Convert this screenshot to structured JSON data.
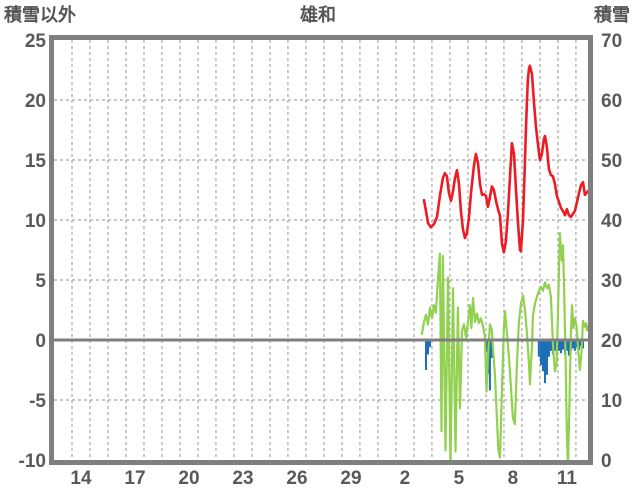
{
  "header": {
    "left_axis_label": "積雪以外",
    "title": "雄和",
    "right_axis_label": "積雪"
  },
  "colors": {
    "frame": "#7f7f7f",
    "grid": "#a6a6a6",
    "zero_line": "#7f7f7f",
    "text": "#595959",
    "red_line": "#ed1c24",
    "green_line": "#92d050",
    "blue_bar": "#1d6fb7"
  },
  "chart_data": {
    "type": "line",
    "title": "雄和",
    "legend": "none",
    "grid": "on",
    "left_axis": {
      "label": "積雪以外",
      "min": -10,
      "max": 25,
      "ticks": [
        25,
        20,
        15,
        10,
        5,
        0,
        -5,
        -10
      ],
      "dashed_gridline_values": [
        20,
        15,
        10,
        5,
        -5
      ],
      "zero_line_value": 0
    },
    "right_axis": {
      "label": "積雪",
      "min": 0,
      "max": 70,
      "ticks": [
        70,
        60,
        50,
        40,
        30,
        20,
        10,
        0
      ]
    },
    "x_axis": {
      "total_days": 29.67,
      "gridline_every_days": 1,
      "tick_labels": [
        "14",
        "17",
        "20",
        "23",
        "26",
        "29",
        "2",
        "5",
        "8",
        "11"
      ],
      "tick_positions_days": [
        1.5,
        4.5,
        7.5,
        10.5,
        13.5,
        16.5,
        19.5,
        22.5,
        25.5,
        28.5
      ]
    },
    "series": [
      {
        "name": "red_line",
        "axis_label": "積雪",
        "type": "line",
        "axis": "right",
        "color": "#ed1c24",
        "width": 2.6,
        "points": [
          [
            20.56,
            43.3
          ],
          [
            20.67,
            41.5
          ],
          [
            20.78,
            39.5
          ],
          [
            20.94,
            38.8
          ],
          [
            21.11,
            39.3
          ],
          [
            21.28,
            40.5
          ],
          [
            21.44,
            44.0
          ],
          [
            21.61,
            47.0
          ],
          [
            21.72,
            47.8
          ],
          [
            21.83,
            47.3
          ],
          [
            21.94,
            44.5
          ],
          [
            22.06,
            43.2
          ],
          [
            22.17,
            44.8
          ],
          [
            22.28,
            47.0
          ],
          [
            22.39,
            48.3
          ],
          [
            22.5,
            46.0
          ],
          [
            22.61,
            41.5
          ],
          [
            22.72,
            38.5
          ],
          [
            22.83,
            37.0
          ],
          [
            22.94,
            37.8
          ],
          [
            23.06,
            40.5
          ],
          [
            23.17,
            44.5
          ],
          [
            23.33,
            49.0
          ],
          [
            23.44,
            51.0
          ],
          [
            23.56,
            49.5
          ],
          [
            23.67,
            46.0
          ],
          [
            23.78,
            44.2
          ],
          [
            23.89,
            44.3
          ],
          [
            24.0,
            44.0
          ],
          [
            24.11,
            42.2
          ],
          [
            24.22,
            43.8
          ],
          [
            24.33,
            45.6
          ],
          [
            24.44,
            45.0
          ],
          [
            24.56,
            43.2
          ],
          [
            24.67,
            41.8
          ],
          [
            24.78,
            40.7
          ],
          [
            24.89,
            36.0
          ],
          [
            25.0,
            34.6
          ],
          [
            25.11,
            36.5
          ],
          [
            25.22,
            41.0
          ],
          [
            25.33,
            47.0
          ],
          [
            25.44,
            52.8
          ],
          [
            25.56,
            51.0
          ],
          [
            25.67,
            45.0
          ],
          [
            25.78,
            39.5
          ],
          [
            25.89,
            35.0
          ],
          [
            25.94,
            34.8
          ],
          [
            26.06,
            40.0
          ],
          [
            26.17,
            50.0
          ],
          [
            26.22,
            55.0
          ],
          [
            26.28,
            60.0
          ],
          [
            26.33,
            63.5
          ],
          [
            26.39,
            65.2
          ],
          [
            26.44,
            65.7
          ],
          [
            26.5,
            65.0
          ],
          [
            26.56,
            64.3
          ],
          [
            26.67,
            59.5
          ],
          [
            26.78,
            55.5
          ],
          [
            26.89,
            52.5
          ],
          [
            27.0,
            50.0
          ],
          [
            27.11,
            51.0
          ],
          [
            27.22,
            53.5
          ],
          [
            27.28,
            54.0
          ],
          [
            27.39,
            52.0
          ],
          [
            27.5,
            48.5
          ],
          [
            27.61,
            47.5
          ],
          [
            27.72,
            47.3
          ],
          [
            27.83,
            46.0
          ],
          [
            27.94,
            44.0
          ],
          [
            28.06,
            43.0
          ],
          [
            28.17,
            42.0
          ],
          [
            28.28,
            41.5
          ],
          [
            28.39,
            40.8
          ],
          [
            28.5,
            41.8
          ],
          [
            28.61,
            40.8
          ],
          [
            28.72,
            40.5
          ],
          [
            28.83,
            41.0
          ],
          [
            28.94,
            41.5
          ],
          [
            29.06,
            43.0
          ],
          [
            29.17,
            44.5
          ],
          [
            29.28,
            45.8
          ],
          [
            29.39,
            46.3
          ],
          [
            29.5,
            44.2
          ],
          [
            29.61,
            44.6
          ],
          [
            29.67,
            44.8
          ]
        ]
      },
      {
        "name": "green_line",
        "axis_label": "積雪以外",
        "type": "line",
        "axis": "left",
        "color": "#92d050",
        "width": 2.2,
        "points": [
          [
            20.44,
            0.5
          ],
          [
            20.56,
            1.5
          ],
          [
            20.67,
            2.1
          ],
          [
            20.78,
            1.3
          ],
          [
            20.89,
            2.7
          ],
          [
            21.0,
            1.8
          ],
          [
            21.11,
            2.9
          ],
          [
            21.22,
            2.3
          ],
          [
            21.33,
            5.0
          ],
          [
            21.44,
            7.2
          ],
          [
            21.53,
            -7.6
          ],
          [
            21.61,
            7.0
          ],
          [
            21.75,
            -9.2
          ],
          [
            21.89,
            5.2
          ],
          [
            22.03,
            -10.5
          ],
          [
            22.17,
            4.3
          ],
          [
            22.31,
            -9.3
          ],
          [
            22.44,
            2.7
          ],
          [
            22.56,
            -5.7
          ],
          [
            22.67,
            0.8
          ],
          [
            22.78,
            1.3
          ],
          [
            22.89,
            0.2
          ],
          [
            23.0,
            1.5
          ],
          [
            23.11,
            2.9
          ],
          [
            23.19,
            1.0
          ],
          [
            23.28,
            3.5
          ],
          [
            23.39,
            1.5
          ],
          [
            23.5,
            2.2
          ],
          [
            23.61,
            1.4
          ],
          [
            23.72,
            1.8
          ],
          [
            23.83,
            1.2
          ],
          [
            23.94,
            0.3
          ],
          [
            24.03,
            -4.3
          ],
          [
            24.11,
            -1.5
          ],
          [
            24.22,
            1.3
          ],
          [
            24.33,
            0.8
          ],
          [
            24.39,
            -0.7
          ],
          [
            24.5,
            -3.0
          ],
          [
            24.61,
            -6.5
          ],
          [
            24.69,
            -9.2
          ],
          [
            24.78,
            -9.8
          ],
          [
            24.89,
            -4.0
          ],
          [
            25.0,
            1.0
          ],
          [
            25.06,
            2.4
          ],
          [
            25.17,
            0.5
          ],
          [
            25.28,
            -1.5
          ],
          [
            25.39,
            -4.0
          ],
          [
            25.5,
            -6.5
          ],
          [
            25.61,
            -7.0
          ],
          [
            25.72,
            -2.0
          ],
          [
            25.83,
            1.5
          ],
          [
            25.94,
            3.0
          ],
          [
            26.06,
            3.7
          ],
          [
            26.17,
            2.5
          ],
          [
            26.28,
            0.5
          ],
          [
            26.39,
            -2.0
          ],
          [
            26.44,
            -3.7
          ],
          [
            26.56,
            -0.5
          ],
          [
            26.61,
            2.0
          ],
          [
            26.72,
            3.0
          ],
          [
            26.83,
            3.6
          ],
          [
            26.94,
            4.1
          ],
          [
            27.06,
            4.4
          ],
          [
            27.17,
            4.1
          ],
          [
            27.28,
            4.8
          ],
          [
            27.39,
            4.3
          ],
          [
            27.5,
            4.6
          ],
          [
            27.61,
            3.6
          ],
          [
            27.67,
            1.5
          ],
          [
            27.75,
            -1.0
          ],
          [
            27.83,
            -2.6
          ],
          [
            27.92,
            -2.0
          ],
          [
            28.0,
            2.0
          ],
          [
            28.06,
            6.0
          ],
          [
            28.11,
            8.9
          ],
          [
            28.17,
            7.4
          ],
          [
            28.22,
            6.6
          ],
          [
            28.28,
            7.9
          ],
          [
            28.33,
            5.0
          ],
          [
            28.42,
            -1.0
          ],
          [
            28.5,
            -8.0
          ],
          [
            28.56,
            -10.6
          ],
          [
            28.64,
            -5.0
          ],
          [
            28.72,
            0.5
          ],
          [
            28.78,
            2.9
          ],
          [
            28.86,
            1.0
          ],
          [
            28.94,
            1.8
          ],
          [
            29.03,
            1.2
          ],
          [
            29.11,
            -0.5
          ],
          [
            29.22,
            -2.5
          ],
          [
            29.31,
            -1.0
          ],
          [
            29.39,
            1.6
          ],
          [
            29.47,
            1.1
          ],
          [
            29.56,
            1.4
          ],
          [
            29.61,
            0.8
          ],
          [
            29.67,
            1.2
          ]
        ]
      },
      {
        "name": "blue_bars",
        "axis_label": "積雪以外",
        "type": "bar",
        "axis": "left",
        "color": "#1d6fb7",
        "bar_width_days": 0.115,
        "points": [
          [
            20.67,
            -2.5
          ],
          [
            20.78,
            -1.2
          ],
          [
            20.89,
            -0.6
          ],
          [
            24.0,
            -1.0
          ],
          [
            24.11,
            -2.8
          ],
          [
            24.22,
            -4.2
          ],
          [
            24.31,
            -1.5
          ],
          [
            26.94,
            -1.4
          ],
          [
            27.06,
            -2.1
          ],
          [
            27.17,
            -2.6
          ],
          [
            27.28,
            -3.6
          ],
          [
            27.39,
            -2.9
          ],
          [
            27.5,
            -1.4
          ],
          [
            27.61,
            -0.9
          ],
          [
            27.72,
            -1.2
          ],
          [
            27.83,
            -0.9
          ],
          [
            27.94,
            -1.3
          ],
          [
            28.06,
            -0.9
          ],
          [
            28.17,
            -1.1
          ],
          [
            28.28,
            -0.8
          ],
          [
            28.39,
            -1.2
          ],
          [
            28.5,
            -0.9
          ],
          [
            28.61,
            -1.3
          ],
          [
            28.72,
            -0.9
          ],
          [
            28.83,
            -0.7
          ],
          [
            28.94,
            -0.9
          ],
          [
            29.06,
            -0.6
          ],
          [
            29.17,
            -0.8
          ],
          [
            29.28,
            -0.5
          ],
          [
            29.39,
            -0.7
          ]
        ]
      }
    ]
  }
}
